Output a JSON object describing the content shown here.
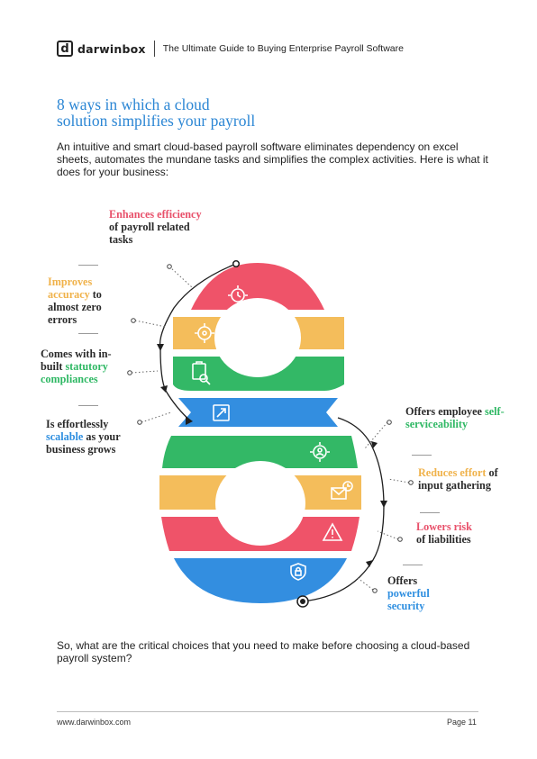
{
  "header": {
    "logo_glyph": "d",
    "logo_text": "darwinbox",
    "title": "The Ultimate Guide to Buying Enterprise Payroll Software"
  },
  "heading": {
    "line1": "8 ways in which a cloud",
    "line2": "solution simplifies your payroll"
  },
  "intro": "An intuitive and smart cloud-based payroll software eliminates dependency on excel sheets, automates the mundane tasks and simplifies the complex activities. Here is what it does for your business:",
  "ways": [
    {
      "pre": "",
      "highlight": "Enhances efficiency",
      "post": "of payroll related tasks",
      "color": "#e8506a",
      "icon": "gear-clock-icon"
    },
    {
      "pre": "",
      "highlight": "Improves accuracy",
      "post": "to almost zero errors",
      "color": "#f0b24a",
      "icon": "target-icon"
    },
    {
      "pre": "Comes with in-built",
      "highlight": "statutory compliances",
      "post": "",
      "color": "#2fb864",
      "icon": "clipboard-search-icon"
    },
    {
      "pre": "Is effortlessly",
      "highlight": "scalable",
      "post": "as your business grows",
      "color": "#2f8fe0",
      "icon": "expand-icon"
    },
    {
      "pre": "Offers employee",
      "highlight": "self-serviceability",
      "post": "",
      "color": "#2fb864",
      "icon": "gear-user-icon"
    },
    {
      "pre": "",
      "highlight": "Reduces effort",
      "post": "of input gathering",
      "color": "#f0b24a",
      "icon": "chart-envelope-icon"
    },
    {
      "pre": "",
      "highlight": "Lowers risk",
      "post": "of liabilities",
      "color": "#e8506a",
      "icon": "warning-icon"
    },
    {
      "pre": "Offers",
      "highlight": "powerful security",
      "post": "",
      "color": "#2f8fe0",
      "icon": "shield-lock-icon"
    }
  ],
  "closing": "So, what are the critical choices that you need to make before choosing a cloud-based payroll system?",
  "footer": {
    "url": "www.darwinbox.com",
    "page": "Page 11"
  }
}
